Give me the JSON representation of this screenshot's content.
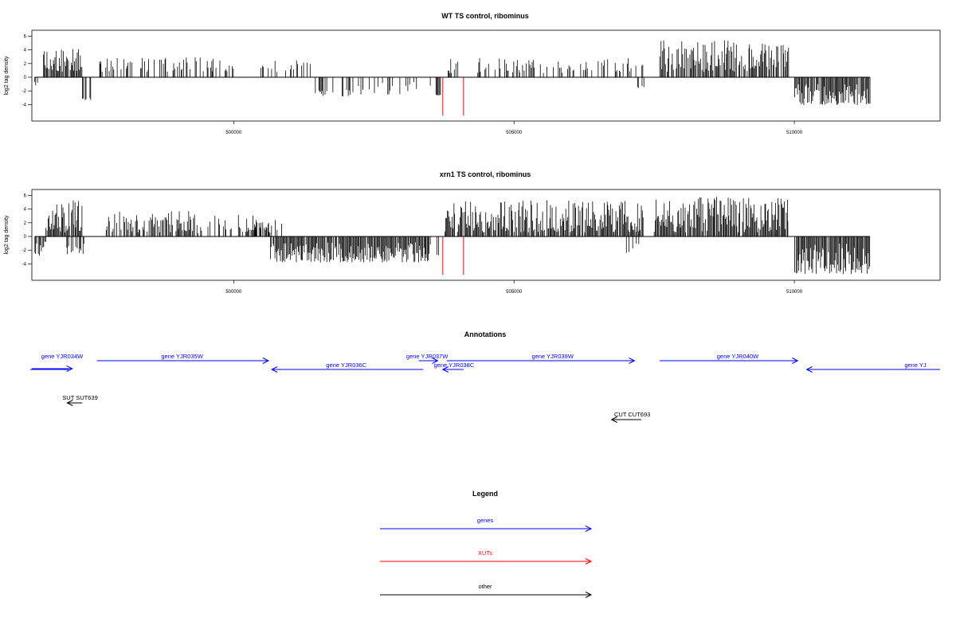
{
  "chart_data": [
    {
      "type": "bar",
      "title": "WT TS control, ribominus",
      "ylabel": "log2 tag density",
      "ylim": [
        -6,
        6
      ],
      "yticks": [
        -4,
        -2,
        0,
        2,
        4,
        6
      ],
      "xlim": [
        496400,
        512600
      ],
      "xticks": [
        500000,
        505000,
        510000
      ],
      "xtick_labels": [
        "500000",
        "505000",
        "510000"
      ],
      "bar_color": "#000000",
      "highlight_color": "#ff0000",
      "highlight_x": [
        503730,
        504100
      ],
      "highlight_y": -5.6,
      "segments": [
        {
          "from": 496450,
          "to": 496500,
          "seed": 1,
          "lo": -1.2,
          "hi": -0.4,
          "density": 0.8
        },
        {
          "from": 496600,
          "to": 497300,
          "seed": 2,
          "lo": 0.8,
          "hi": 4.2,
          "density": 0.9
        },
        {
          "from": 497300,
          "to": 497500,
          "seed": 3,
          "lo": -3.4,
          "hi": -3.0,
          "density": 0.3
        },
        {
          "from": 497600,
          "to": 500000,
          "seed": 4,
          "lo": 0.8,
          "hi": 2.9,
          "density": 0.35
        },
        {
          "from": 500400,
          "to": 500700,
          "seed": 5,
          "lo": 1.0,
          "hi": 1.8,
          "density": 0.4
        },
        {
          "from": 500700,
          "to": 501400,
          "seed": 6,
          "lo": 0.6,
          "hi": 2.9,
          "density": 0.25
        },
        {
          "from": 501400,
          "to": 502300,
          "seed": 7,
          "lo": -2.8,
          "hi": -1.2,
          "density": 0.35
        },
        {
          "from": 502300,
          "to": 503500,
          "seed": 8,
          "lo": -2.6,
          "hi": -0.6,
          "density": 0.3
        },
        {
          "from": 503600,
          "to": 503680,
          "seed": 9,
          "lo": -2.7,
          "hi": -2.4,
          "density": 0.6
        },
        {
          "from": 503800,
          "to": 504000,
          "seed": 10,
          "lo": 0.6,
          "hi": 2.8,
          "density": 0.6
        },
        {
          "from": 504300,
          "to": 507300,
          "seed": 11,
          "lo": 0.6,
          "hi": 2.8,
          "density": 0.35
        },
        {
          "from": 507200,
          "to": 507320,
          "seed": 12,
          "lo": -1.6,
          "hi": -1.2,
          "density": 0.3
        },
        {
          "from": 507600,
          "to": 509900,
          "seed": 13,
          "lo": 0.8,
          "hi": 5.4,
          "density": 0.75
        },
        {
          "from": 510000,
          "to": 511350,
          "seed": 14,
          "lo": -4.1,
          "hi": -1.0,
          "density": 0.95
        }
      ]
    },
    {
      "type": "bar",
      "title": "xrn1 TS control, ribominus",
      "ylabel": "log2 tag density",
      "ylim": [
        -6,
        6
      ],
      "yticks": [
        -4,
        -2,
        0,
        2,
        4,
        6
      ],
      "xlim": [
        496400,
        512600
      ],
      "xticks": [
        500000,
        505000,
        510000
      ],
      "xtick_labels": [
        "500000",
        "505000",
        "510000"
      ],
      "bar_color": "#000000",
      "highlight_color": "#ff0000",
      "highlight_x": [
        503730,
        504100
      ],
      "highlight_y": -5.6,
      "segments": [
        {
          "from": 496450,
          "to": 496650,
          "seed": 21,
          "lo": -2.9,
          "hi": -0.6,
          "density": 0.8
        },
        {
          "from": 496650,
          "to": 497300,
          "seed": 22,
          "lo": 0.6,
          "hi": 5.3,
          "density": 0.95
        },
        {
          "from": 497000,
          "to": 497350,
          "seed": 23,
          "lo": -2.6,
          "hi": -0.8,
          "density": 0.4
        },
        {
          "from": 497700,
          "to": 499200,
          "seed": 24,
          "lo": 0.6,
          "hi": 3.7,
          "density": 0.6
        },
        {
          "from": 499200,
          "to": 500900,
          "seed": 25,
          "lo": 0.5,
          "hi": 3.2,
          "density": 0.4
        },
        {
          "from": 500350,
          "to": 500650,
          "seed": 26,
          "lo": 0.8,
          "hi": 2.2,
          "density": 0.8
        },
        {
          "from": 500650,
          "to": 503500,
          "seed": 27,
          "lo": -3.8,
          "hi": -0.8,
          "density": 0.95
        },
        {
          "from": 503600,
          "to": 503700,
          "seed": 28,
          "lo": -3.0,
          "hi": -1.5,
          "density": 0.6
        },
        {
          "from": 503760,
          "to": 507300,
          "seed": 29,
          "lo": 0.6,
          "hi": 5.3,
          "density": 0.95
        },
        {
          "from": 507000,
          "to": 507250,
          "seed": 30,
          "lo": -2.5,
          "hi": -1.0,
          "density": 0.4
        },
        {
          "from": 507500,
          "to": 509900,
          "seed": 31,
          "lo": 0.6,
          "hi": 5.8,
          "density": 0.95
        },
        {
          "from": 510000,
          "to": 511350,
          "seed": 32,
          "lo": -5.5,
          "hi": -1.0,
          "density": 0.95
        }
      ]
    }
  ],
  "annotations": {
    "title": "Annotations",
    "genes": [
      {
        "label": "gene YJR034W",
        "x1": 496400,
        "x2": 497120,
        "dir": "right",
        "row": 2,
        "color": "#0000ff",
        "label_x": 496940,
        "label_row": 0
      },
      {
        "label": "gene YJR035W",
        "x1": 497560,
        "x2": 500620,
        "dir": "right",
        "row": 0,
        "color": "#0000ff",
        "label_x": 499080,
        "label_row": 0
      },
      {
        "label": "gene YJR036C",
        "x1": 500680,
        "x2": 503380,
        "dir": "left",
        "row": 1,
        "color": "#0000ff",
        "label_x": 502010,
        "label_row": 1
      },
      {
        "label": "gene YJR037W",
        "x1": 503300,
        "x2": 503640,
        "dir": "right",
        "row": 0,
        "color": "#0000ff",
        "label_x": 503450,
        "label_row": 0
      },
      {
        "label": "gene YJR038C",
        "x1": 503730,
        "x2": 504100,
        "dir": "left",
        "row": 1,
        "color": "#0000ff",
        "label_x": 503930,
        "label_row": 1
      },
      {
        "label": "gene YJR039W",
        "x1": 503800,
        "x2": 507150,
        "dir": "right",
        "row": 0,
        "color": "#0000ff",
        "label_x": 505690,
        "label_row": 0
      },
      {
        "label": "gene YJR040W",
        "x1": 507600,
        "x2": 510060,
        "dir": "right",
        "row": 0,
        "color": "#0000ff",
        "label_x": 508990,
        "label_row": 0
      },
      {
        "label": "gene YJ",
        "x1": 510220,
        "x2": 512600,
        "dir": "left",
        "row": 1,
        "color": "#0000ff",
        "label_x": 512160,
        "label_row": 1
      }
    ],
    "others": [
      {
        "label": "SUT SUT639",
        "x1": 497030,
        "x2": 497300,
        "dir": "left",
        "row": 3,
        "color": "#000000",
        "label_x": 497260,
        "label_row": 2
      },
      {
        "label": "CUT CUT693",
        "x1": 506740,
        "x2": 507270,
        "dir": "left",
        "row": 5,
        "color": "#000000",
        "label_x": 507110,
        "label_row": 4
      }
    ]
  },
  "legend": {
    "title": "Legend",
    "items": [
      {
        "label": "genes",
        "color": "#0000ff"
      },
      {
        "label": "XUTs",
        "color": "#ff0000"
      },
      {
        "label": "other",
        "color": "#000000"
      }
    ]
  }
}
